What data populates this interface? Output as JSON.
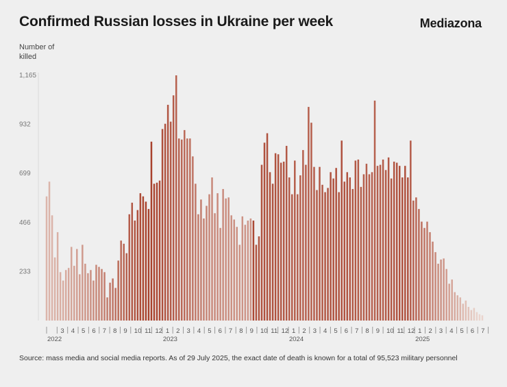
{
  "header": {
    "title": "Confirmed Russian losses in Ukraine per week",
    "brand": "Mediazona"
  },
  "source_note": "Source: mass media and social media reports. As of 29 July 2025, the exact date of death is known for a total of 95,523 military personnel",
  "colors": {
    "bar_dark": "#a8412c",
    "bar_light": "#eddcd5",
    "grid": "#d8d8d8",
    "axis": "#999999"
  },
  "chart_data": {
    "type": "bar",
    "ylabel": "Number of killed",
    "ylim": [
      0,
      1165
    ],
    "yticks": [
      233,
      466,
      699,
      932,
      1165
    ],
    "ytick_labels": [
      "233",
      "466",
      "699",
      "932",
      "1,165"
    ],
    "month_labels": [
      "",
      "3",
      "4",
      "5",
      "6",
      "7",
      "8",
      "9",
      "10",
      "11",
      "12",
      "1",
      "2",
      "3",
      "4",
      "5",
      "6",
      "7",
      "8",
      "9",
      "10",
      "11",
      "12",
      "1",
      "2",
      "3",
      "4",
      "5",
      "6",
      "7",
      "8",
      "9",
      "10",
      "11",
      "12",
      "1",
      "2",
      "3",
      "4",
      "5",
      "6",
      "7"
    ],
    "year_labels": [
      {
        "label": "2022",
        "month_index": 0
      },
      {
        "label": "2023",
        "month_index": 11
      },
      {
        "label": "2024",
        "month_index": 23
      },
      {
        "label": "2025",
        "month_index": 35
      }
    ],
    "values": [
      590,
      660,
      500,
      300,
      420,
      230,
      190,
      240,
      250,
      350,
      260,
      340,
      220,
      360,
      270,
      225,
      240,
      190,
      265,
      255,
      245,
      230,
      110,
      180,
      200,
      155,
      285,
      380,
      365,
      320,
      505,
      560,
      475,
      525,
      605,
      590,
      565,
      530,
      850,
      650,
      655,
      665,
      910,
      935,
      1025,
      945,
      1070,
      1165,
      865,
      860,
      905,
      865,
      865,
      780,
      650,
      505,
      575,
      485,
      545,
      600,
      680,
      510,
      605,
      440,
      625,
      580,
      585,
      500,
      480,
      445,
      360,
      495,
      455,
      475,
      485,
      475,
      360,
      400,
      740,
      845,
      890,
      705,
      650,
      795,
      790,
      750,
      755,
      830,
      680,
      600,
      760,
      600,
      690,
      810,
      740,
      1015,
      940,
      730,
      620,
      730,
      645,
      610,
      630,
      705,
      675,
      725,
      610,
      855,
      660,
      705,
      680,
      625,
      760,
      765,
      635,
      695,
      745,
      695,
      705,
      1045,
      735,
      740,
      765,
      715,
      775,
      675,
      755,
      750,
      735,
      680,
      735,
      680,
      855,
      570,
      585,
      530,
      470,
      440,
      470,
      420,
      375,
      325,
      270,
      290,
      295,
      245,
      175,
      195,
      135,
      120,
      110,
      80,
      95,
      65,
      50,
      60,
      40,
      30,
      25
    ],
    "grid": false
  }
}
